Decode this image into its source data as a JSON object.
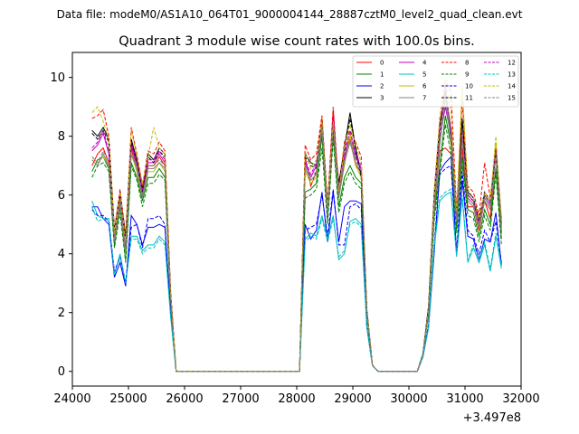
{
  "chart_data": {
    "type": "line",
    "file_label": "Data file: modeM0/AS1A10_064T01_9000004144_28887cztM0_level2_quad_clean.evt",
    "title": "Quadrant 3 module wise count rates with 100.0s bins.",
    "xlabel": "",
    "ylabel": "",
    "x_offset_label": "+3.497e8",
    "xlim": [
      24000,
      32000
    ],
    "ylim": [
      -0.5,
      10.85
    ],
    "xticks": [
      24000,
      25000,
      26000,
      27000,
      28000,
      29000,
      30000,
      31000,
      32000
    ],
    "xtick_labels": [
      "24000",
      "25000",
      "26000",
      "27000",
      "28000",
      "29000",
      "30000",
      "31000",
      "32000"
    ],
    "yticks": [
      0,
      2,
      4,
      6,
      8,
      10
    ],
    "ytick_labels": [
      "0",
      "2",
      "4",
      "6",
      "8",
      "10"
    ],
    "legend_position": "top-right",
    "segments": [
      {
        "name": "segment-1",
        "x_start": 24350,
        "x_step": 100,
        "n": 20
      },
      {
        "name": "gap-1",
        "x_start": 26250,
        "x_step": 100,
        "n": 19
      },
      {
        "name": "segment-2",
        "x_start": 28150,
        "x_step": 100,
        "n": 12
      },
      {
        "name": "gap-2",
        "x_start": 29350,
        "x_step": 100,
        "n": 9
      },
      {
        "name": "segment-3",
        "x_start": 30250,
        "x_step": 100,
        "n": 15
      }
    ],
    "series": [
      {
        "name": "0",
        "color": "#ff0000",
        "dashed": false,
        "seg1": [
          7.0,
          7.4,
          7.6,
          7.1,
          4.5,
          5.9,
          4.0,
          7.6,
          6.8,
          6.0,
          7.0,
          7.0,
          7.3,
          7.0,
          2.5,
          0.0,
          0.0,
          0.0,
          0.0,
          0.0
        ],
        "seg2": [
          7.3,
          6.3,
          6.8,
          8.2,
          5.4,
          8.9,
          6.0,
          7.2,
          7.9,
          7.0,
          6.8,
          2.0
        ],
        "seg3": [
          0.6,
          2.0,
          5.5,
          7.5,
          7.6,
          7.4,
          5.0,
          7.6,
          5.6,
          5.6,
          4.8,
          5.8,
          5.2,
          7.4,
          4.7
        ]
      },
      {
        "name": "1",
        "color": "#008000",
        "dashed": false,
        "seg1": [
          6.8,
          7.2,
          7.3,
          6.9,
          4.3,
          5.6,
          3.8,
          7.1,
          6.6,
          5.8,
          6.6,
          6.6,
          6.9,
          6.6,
          2.4,
          0.0,
          0.0,
          0.0,
          0.0,
          0.0
        ],
        "seg2": [
          6.1,
          6.2,
          6.4,
          8.0,
          5.2,
          8.1,
          5.6,
          6.6,
          7.0,
          6.6,
          6.4,
          1.9
        ],
        "seg3": [
          0.6,
          2.0,
          5.3,
          7.0,
          8.7,
          7.7,
          4.9,
          7.3,
          5.5,
          5.4,
          4.6,
          5.5,
          5.0,
          6.9,
          4.5
        ]
      },
      {
        "name": "2",
        "color": "#0000ff",
        "dashed": false,
        "seg1": [
          5.6,
          5.6,
          5.2,
          5.0,
          3.2,
          3.7,
          2.9,
          5.3,
          5.0,
          4.3,
          4.9,
          4.9,
          5.0,
          4.9,
          2.0,
          0.0,
          0.0,
          0.0,
          0.0,
          0.0
        ],
        "seg2": [
          5.0,
          4.5,
          4.8,
          6.1,
          4.4,
          6.1,
          4.4,
          5.6,
          5.8,
          5.8,
          5.7,
          1.5
        ],
        "seg3": [
          0.5,
          1.5,
          4.0,
          6.8,
          7.1,
          7.3,
          4.0,
          6.5,
          4.6,
          4.5,
          3.8,
          4.5,
          4.4,
          5.4,
          3.6
        ]
      },
      {
        "name": "3",
        "color": "#000000",
        "dashed": false,
        "seg1": [
          8.2,
          8.0,
          8.3,
          7.9,
          4.8,
          6.1,
          4.6,
          7.9,
          7.2,
          6.2,
          7.4,
          7.2,
          7.6,
          7.4,
          2.7,
          0.0,
          0.0,
          0.0,
          0.0,
          0.0
        ],
        "seg2": [
          7.4,
          7.1,
          7.0,
          8.6,
          5.6,
          8.4,
          6.4,
          7.6,
          8.8,
          7.6,
          6.7,
          2.1
        ],
        "seg3": [
          0.6,
          2.2,
          6.0,
          8.4,
          9.5,
          8.2,
          5.4,
          8.6,
          6.1,
          5.9,
          5.2,
          6.1,
          5.8,
          7.6,
          5.1
        ]
      },
      {
        "name": "4",
        "color": "#bf00bf",
        "dashed": false,
        "seg1": [
          7.5,
          7.7,
          8.1,
          7.4,
          4.6,
          6.0,
          4.2,
          7.7,
          7.0,
          6.1,
          7.1,
          7.1,
          7.4,
          7.1,
          2.6,
          0.0,
          0.0,
          0.0,
          0.0,
          0.0
        ],
        "seg2": [
          7.1,
          6.6,
          7.0,
          8.4,
          5.4,
          8.6,
          6.1,
          7.3,
          8.1,
          7.3,
          6.9,
          2.0
        ],
        "seg3": [
          0.6,
          2.1,
          5.7,
          7.9,
          9.0,
          8.0,
          5.2,
          8.0,
          5.9,
          5.7,
          5.0,
          5.9,
          5.6,
          7.4,
          4.9
        ]
      },
      {
        "name": "5",
        "color": "#00bfbf",
        "dashed": false,
        "seg1": [
          5.8,
          5.3,
          5.2,
          5.2,
          3.3,
          4.0,
          3.0,
          4.6,
          4.6,
          4.1,
          4.3,
          4.3,
          4.6,
          4.4,
          1.9,
          0.0,
          0.0,
          0.0,
          0.0,
          0.0
        ],
        "seg2": [
          4.5,
          4.7,
          4.6,
          5.3,
          4.5,
          5.3,
          3.8,
          4.0,
          5.1,
          5.2,
          5.0,
          1.5
        ],
        "seg3": [
          0.5,
          1.5,
          4.2,
          5.8,
          6.0,
          6.1,
          3.9,
          5.9,
          3.7,
          4.2,
          3.7,
          4.3,
          3.4,
          4.6,
          3.5
        ]
      },
      {
        "name": "6",
        "color": "#bfbf00",
        "dashed": false,
        "seg1": [
          7.3,
          7.1,
          7.3,
          7.0,
          4.4,
          5.8,
          3.9,
          7.4,
          6.8,
          5.9,
          6.8,
          6.8,
          7.1,
          6.8,
          2.5,
          0.0,
          0.0,
          0.0,
          0.0,
          0.0
        ],
        "seg2": [
          6.8,
          6.4,
          6.6,
          8.7,
          5.3,
          8.4,
          5.9,
          7.0,
          8.1,
          7.0,
          6.6,
          2.0
        ],
        "seg3": [
          0.6,
          2.0,
          5.5,
          7.8,
          9.9,
          7.6,
          5.1,
          9.6,
          5.8,
          5.6,
          4.9,
          5.8,
          5.5,
          7.8,
          4.8
        ]
      },
      {
        "name": "7",
        "color": "#808080",
        "dashed": false,
        "seg1": [
          7.2,
          7.0,
          7.4,
          7.0,
          4.4,
          5.7,
          4.0,
          7.4,
          6.9,
          5.9,
          6.9,
          6.9,
          7.1,
          6.9,
          2.5,
          0.0,
          0.0,
          0.0,
          0.0,
          0.0
        ],
        "seg2": [
          6.9,
          6.5,
          6.7,
          8.3,
          5.3,
          8.3,
          5.9,
          7.1,
          7.8,
          7.1,
          6.7,
          2.0
        ],
        "seg3": [
          0.6,
          2.0,
          5.5,
          7.7,
          9.3,
          7.8,
          5.1,
          7.9,
          5.8,
          5.6,
          4.9,
          5.8,
          5.5,
          7.3,
          4.8
        ]
      },
      {
        "name": "8",
        "color": "#ff0000",
        "dashed": true,
        "seg1": [
          8.6,
          8.7,
          8.9,
          8.0,
          4.8,
          6.2,
          4.6,
          8.3,
          7.4,
          6.3,
          7.5,
          7.4,
          7.8,
          7.5,
          2.8,
          0.0,
          0.0,
          0.0,
          0.0,
          0.0
        ],
        "seg2": [
          7.7,
          7.2,
          7.4,
          8.7,
          5.7,
          9.0,
          6.2,
          7.8,
          8.2,
          7.8,
          7.3,
          2.1
        ],
        "seg3": [
          0.6,
          2.2,
          6.1,
          8.6,
          9.9,
          9.5,
          5.5,
          9.2,
          6.3,
          6.1,
          5.3,
          7.1,
          5.9,
          7.6,
          5.2
        ]
      },
      {
        "name": "9",
        "color": "#008000",
        "dashed": true,
        "seg1": [
          6.6,
          7.0,
          7.1,
          6.8,
          4.2,
          5.4,
          3.7,
          7.0,
          6.5,
          5.6,
          6.4,
          6.4,
          6.7,
          6.5,
          2.4,
          0.0,
          0.0,
          0.0,
          0.0,
          0.0
        ],
        "seg2": [
          5.9,
          6.0,
          6.2,
          7.6,
          5.0,
          7.9,
          5.4,
          6.4,
          6.8,
          6.4,
          6.2,
          1.9
        ],
        "seg3": [
          0.6,
          1.9,
          5.1,
          6.7,
          8.4,
          7.4,
          4.7,
          7.0,
          5.3,
          5.2,
          4.4,
          5.3,
          4.8,
          6.7,
          4.3
        ]
      },
      {
        "name": "10",
        "color": "#0000ff",
        "dashed": true,
        "seg1": [
          5.5,
          5.3,
          5.3,
          5.1,
          3.4,
          3.9,
          3.0,
          4.9,
          5.0,
          4.2,
          5.2,
          5.2,
          5.3,
          5.0,
          2.0,
          0.0,
          0.0,
          0.0,
          0.0,
          0.0
        ],
        "seg2": [
          4.8,
          4.9,
          5.0,
          6.0,
          4.6,
          6.2,
          4.3,
          4.3,
          5.6,
          5.7,
          5.5,
          1.5
        ],
        "seg3": [
          0.5,
          1.6,
          4.3,
          6.7,
          6.9,
          7.0,
          4.1,
          6.8,
          4.8,
          4.6,
          4.0,
          4.8,
          4.4,
          5.1,
          3.7
        ]
      },
      {
        "name": "11",
        "color": "#000000",
        "dashed": true,
        "seg1": [
          8.1,
          7.9,
          8.2,
          7.8,
          4.7,
          6.0,
          4.5,
          7.8,
          7.1,
          6.1,
          7.3,
          7.1,
          7.5,
          7.3,
          2.7,
          0.0,
          0.0,
          0.0,
          0.0,
          0.0
        ],
        "seg2": [
          7.3,
          7.0,
          6.9,
          8.5,
          5.5,
          8.3,
          6.3,
          7.5,
          8.6,
          7.5,
          6.6,
          2.1
        ],
        "seg3": [
          0.6,
          2.2,
          5.9,
          8.3,
          9.4,
          8.1,
          5.3,
          8.5,
          6.0,
          5.8,
          5.1,
          6.0,
          5.7,
          7.5,
          5.0
        ]
      },
      {
        "name": "12",
        "color": "#bf00bf",
        "dashed": true,
        "seg1": [
          7.6,
          7.8,
          8.2,
          7.5,
          4.7,
          6.1,
          4.3,
          7.8,
          7.1,
          6.2,
          7.2,
          7.2,
          7.5,
          7.2,
          2.6,
          0.0,
          0.0,
          0.0,
          0.0,
          0.0
        ],
        "seg2": [
          7.2,
          6.7,
          7.1,
          8.5,
          5.5,
          8.7,
          6.2,
          7.4,
          8.2,
          7.4,
          7.0,
          2.0
        ],
        "seg3": [
          0.6,
          2.1,
          5.8,
          8.0,
          9.7,
          8.1,
          5.3,
          8.1,
          6.0,
          5.8,
          5.1,
          6.0,
          5.7,
          7.5,
          5.0
        ]
      },
      {
        "name": "13",
        "color": "#00bfbf",
        "dashed": true,
        "seg1": [
          5.6,
          5.1,
          5.2,
          5.1,
          3.3,
          3.9,
          3.0,
          4.5,
          4.5,
          4.0,
          4.2,
          4.2,
          4.5,
          4.3,
          1.9,
          0.0,
          0.0,
          0.0,
          0.0,
          0.0
        ],
        "seg2": [
          4.4,
          4.6,
          4.5,
          5.2,
          4.4,
          5.2,
          3.9,
          4.1,
          5.0,
          5.1,
          4.9,
          1.5
        ],
        "seg3": [
          0.5,
          1.5,
          4.3,
          5.9,
          6.1,
          6.2,
          4.0,
          6.0,
          3.8,
          4.3,
          3.8,
          4.4,
          3.5,
          4.7,
          3.6
        ]
      },
      {
        "name": "14",
        "color": "#bfbf00",
        "dashed": true,
        "seg1": [
          8.8,
          9.0,
          8.5,
          7.9,
          4.7,
          6.1,
          4.4,
          8.2,
          7.3,
          6.4,
          7.3,
          8.3,
          7.6,
          7.4,
          2.7,
          0.0,
          0.0,
          0.0,
          0.0,
          0.0
        ],
        "seg2": [
          7.5,
          6.9,
          7.2,
          8.5,
          5.6,
          8.5,
          6.1,
          7.6,
          8.4,
          7.7,
          7.1,
          2.1
        ],
        "seg3": [
          0.6,
          2.1,
          6.0,
          8.5,
          9.9,
          8.8,
          5.4,
          9.7,
          6.2,
          5.9,
          5.2,
          6.1,
          5.8,
          8.0,
          5.1
        ]
      },
      {
        "name": "15",
        "color": "#808080",
        "dashed": true,
        "seg1": [
          7.3,
          7.1,
          7.5,
          7.1,
          4.5,
          5.8,
          4.1,
          7.5,
          7.0,
          6.0,
          7.0,
          7.0,
          7.2,
          7.0,
          2.5,
          0.0,
          0.0,
          0.0,
          0.0,
          0.0
        ],
        "seg2": [
          7.0,
          6.6,
          6.8,
          8.4,
          5.4,
          8.4,
          6.0,
          7.2,
          7.9,
          7.2,
          6.8,
          2.0
        ],
        "seg3": [
          0.6,
          2.0,
          5.6,
          7.8,
          9.4,
          7.9,
          5.2,
          8.0,
          5.9,
          5.7,
          5.0,
          5.9,
          5.6,
          7.4,
          4.9
        ]
      }
    ]
  }
}
